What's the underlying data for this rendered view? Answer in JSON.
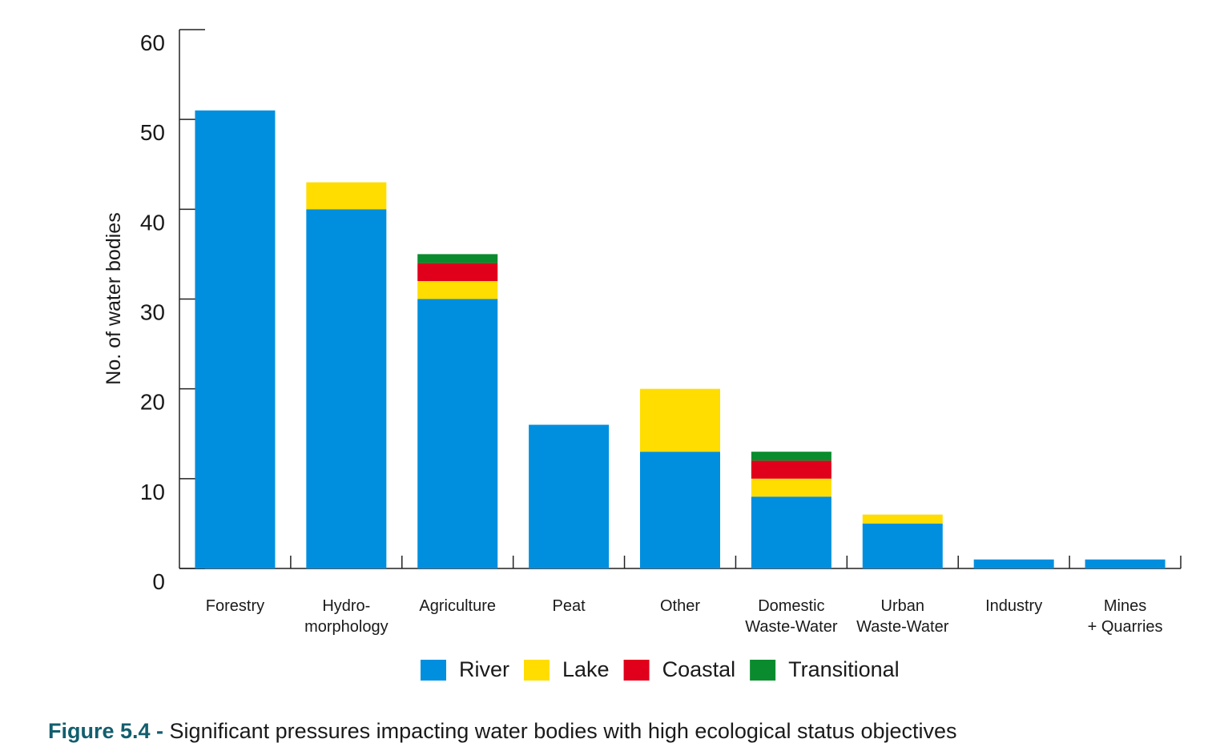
{
  "chart_data": {
    "type": "stacked_bar",
    "figure_label": "Figure 5.4 -",
    "title": "Significant pressures impacting water bodies with high ecological status objectives",
    "y_label": "No. of water bodies",
    "categories": [
      [
        "Forestry"
      ],
      [
        "Hydro-",
        "morphology"
      ],
      [
        "Agriculture"
      ],
      [
        "Peat"
      ],
      [
        "Other"
      ],
      [
        "Domestic",
        "Waste-Water"
      ],
      [
        "Urban",
        "Waste-Water"
      ],
      [
        "Industry"
      ],
      [
        "Mines",
        "+ Quarries"
      ]
    ],
    "series": [
      {
        "name": "River",
        "color": "#008fdf",
        "values": [
          51,
          40,
          30,
          16,
          13,
          8,
          5,
          1,
          1
        ]
      },
      {
        "name": "Lake",
        "color": "#ffdd00",
        "values": [
          0,
          3,
          2,
          0,
          7,
          2,
          1,
          0,
          0
        ]
      },
      {
        "name": "Coastal",
        "color": "#e0001b",
        "values": [
          0,
          0,
          2,
          0,
          0,
          2,
          0,
          0,
          0
        ]
      },
      {
        "name": "Transitional",
        "color": "#0a8c2e",
        "values": [
          0,
          0,
          1,
          0,
          0,
          1,
          0,
          0,
          0
        ]
      }
    ],
    "ylim": [
      0,
      60
    ],
    "yticks": [
      0,
      10,
      20,
      30,
      40,
      50,
      60
    ]
  }
}
